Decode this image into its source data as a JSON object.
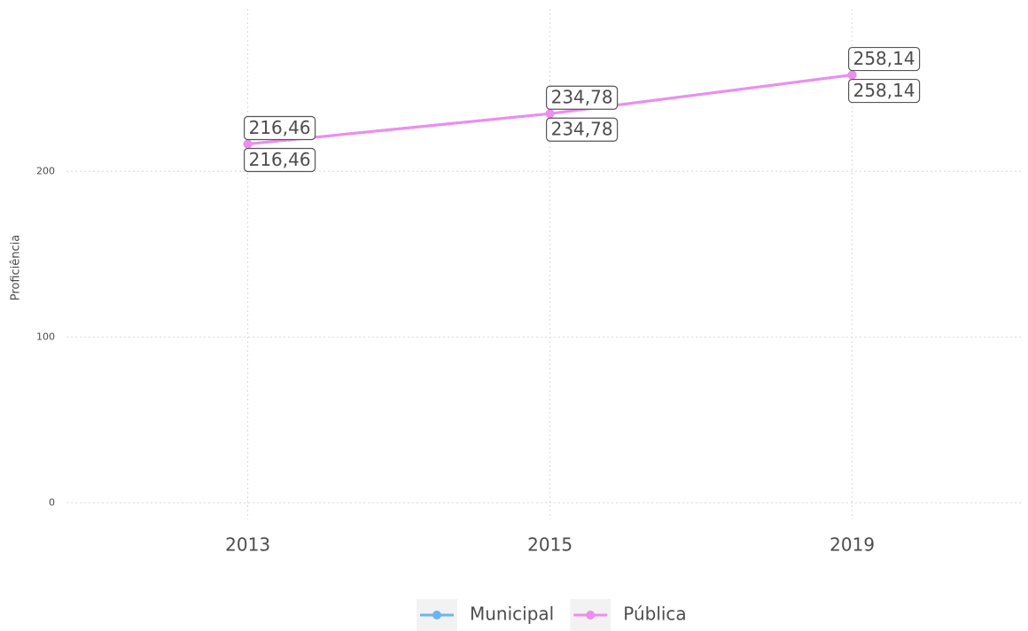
{
  "chart_data": {
    "type": "line",
    "y_label": "Proficiência",
    "categories": [
      "2013",
      "2015",
      "2019"
    ],
    "series": [
      {
        "name": "Municipal",
        "color": "#6cb4f2",
        "values": [
          216.46,
          234.78,
          258.14
        ],
        "value_labels": [
          "216,46",
          "234,78",
          "258,14"
        ]
      },
      {
        "name": "Pública",
        "color": "#f08cf0",
        "values": [
          216.46,
          234.78,
          258.14
        ],
        "value_labels": [
          "216,46",
          "234,78",
          "258,14"
        ]
      }
    ],
    "ylim": [
      -10,
      298
    ],
    "yticks": [
      0,
      100,
      200
    ],
    "grid": true,
    "legend": "bottom"
  }
}
